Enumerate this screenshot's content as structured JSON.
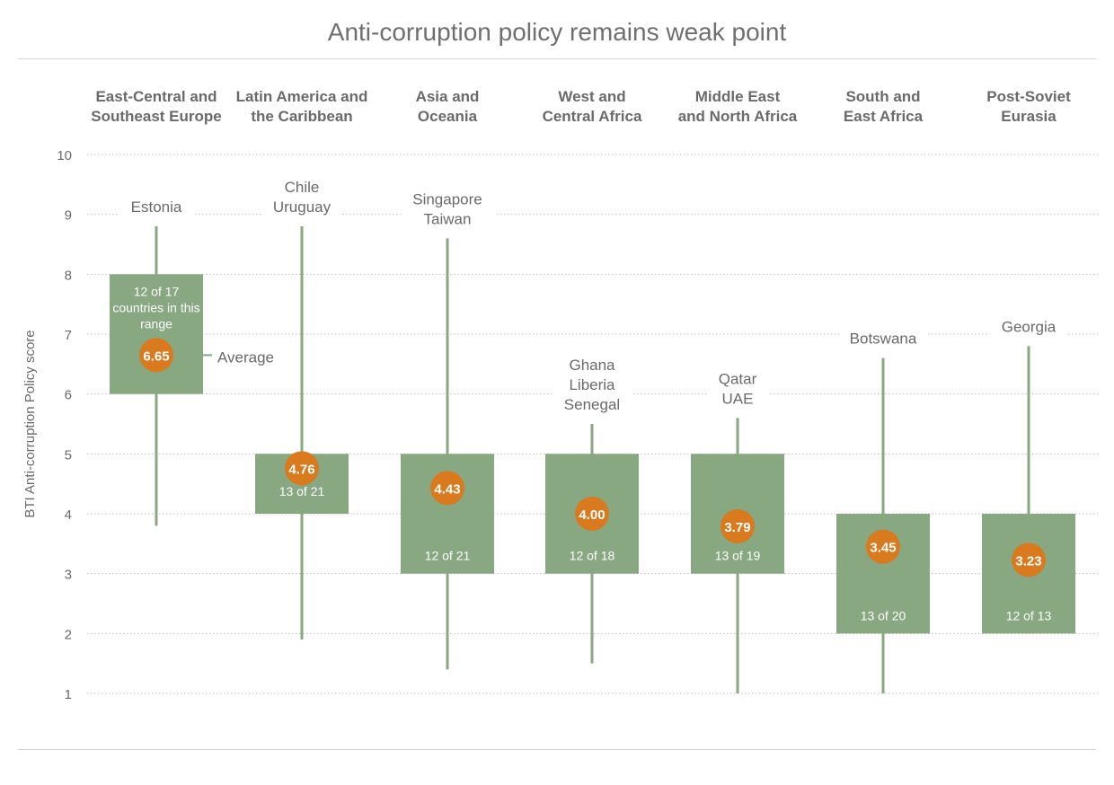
{
  "colors": {
    "box": "#88a882",
    "whisker": "#88a882",
    "average_dot": "#d97a1f",
    "grid": "#b8b8b8",
    "text": "#6a6a6a",
    "header_text": "#6a6a6a",
    "box_text": "#ffffff"
  },
  "chart_data": {
    "type": "box",
    "title": "Anti-corruption policy remains weak point",
    "ylabel": "BTI Anti-corruption Policy score",
    "ylim": [
      1,
      10
    ],
    "yticks": [
      1,
      2,
      3,
      4,
      5,
      6,
      7,
      8,
      9,
      10
    ],
    "grid": true,
    "average_label": "Average",
    "box_note_lines": [
      "countries in this",
      "range"
    ],
    "regions": [
      {
        "name_lines": [
          "East-Central and",
          "Southeast Europe"
        ],
        "min": 3.8,
        "max": 8.8,
        "box_low": 6,
        "box_high": 8,
        "average": 6.65,
        "average_text": "6.65",
        "box_count_text": "12 of 17",
        "top_label_lines": [
          "Estonia"
        ]
      },
      {
        "name_lines": [
          "Latin America and",
          "the Caribbean"
        ],
        "min": 1.9,
        "max": 8.8,
        "box_low": 4,
        "box_high": 5,
        "average": 4.76,
        "average_text": "4.76",
        "box_count_text": "13 of 21",
        "top_label_lines": [
          "Chile",
          "Uruguay"
        ]
      },
      {
        "name_lines": [
          "Asia and",
          "Oceania"
        ],
        "min": 1.4,
        "max": 8.6,
        "box_low": 3,
        "box_high": 5,
        "average": 4.43,
        "average_text": "4.43",
        "box_count_text": "12 of 21",
        "top_label_lines": [
          "Singapore",
          "Taiwan"
        ]
      },
      {
        "name_lines": [
          "West and",
          "Central Africa"
        ],
        "min": 1.5,
        "max": 5.5,
        "box_low": 3,
        "box_high": 5,
        "average": 4.0,
        "average_text": "4.00",
        "box_count_text": "12 of 18",
        "top_label_lines": [
          "Ghana",
          "Liberia",
          "Senegal"
        ]
      },
      {
        "name_lines": [
          "Middle East",
          "and North Africa"
        ],
        "min": 1.0,
        "max": 5.6,
        "box_low": 3,
        "box_high": 5,
        "average": 3.79,
        "average_text": "3.79",
        "box_count_text": "13 of 19",
        "top_label_lines": [
          "Qatar",
          "UAE"
        ]
      },
      {
        "name_lines": [
          "South and",
          "East Africa"
        ],
        "min": 1.0,
        "max": 6.6,
        "box_low": 2,
        "box_high": 4,
        "average": 3.45,
        "average_text": "3.45",
        "box_count_text": "13 of 20",
        "top_label_lines": [
          "Botswana"
        ]
      },
      {
        "name_lines": [
          "Post-Soviet",
          "Eurasia"
        ],
        "min": 2.0,
        "max": 6.8,
        "box_low": 2,
        "box_high": 4,
        "average": 3.23,
        "average_text": "3.23",
        "box_count_text": "12 of 13",
        "top_label_lines": [
          "Georgia"
        ]
      }
    ]
  }
}
